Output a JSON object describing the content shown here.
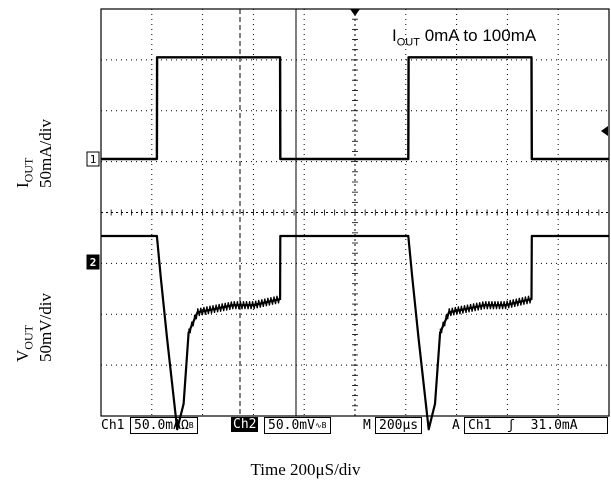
{
  "annotation": {
    "symbol": "I",
    "sub": "OUT",
    "text": " 0mA to 100mA"
  },
  "ylabels": {
    "iout": {
      "symbol": "I",
      "sub": "OUT",
      "scale": "50mA/div"
    },
    "vout": {
      "symbol": "V",
      "sub": "OUT",
      "scale": "50mV/div"
    }
  },
  "xlabel": "Time 200μS/div",
  "status": {
    "ch1": "Ch1",
    "ch1_scale": "50.0mAΩ",
    "ch1_bw": "B",
    "ch2": "Ch2",
    "ch2_scale": "50.0mV",
    "ch2_bw": "B",
    "m": "M",
    "timebase": "200μs",
    "a": "A",
    "trigger_ch": "Ch1",
    "trigger_edge": "ʃ",
    "trigger_level": "31.0mA"
  },
  "markers": {
    "ch1": "1",
    "ch2": "2"
  },
  "colors": {
    "trace": "#000000",
    "grid": "#000000",
    "background": "#ffffff"
  },
  "chart_data": {
    "type": "line",
    "grid": true,
    "x_divisions": 10,
    "y_divisions": 8,
    "x_unit": "μs",
    "series": [
      {
        "channel": "Ch1",
        "x": [
          0,
          220,
          221,
          705,
          706,
          1210,
          1211,
          1695,
          1696,
          2000
        ],
        "y": [
          0,
          0,
          100,
          100,
          0,
          0,
          100,
          100,
          0,
          0
        ]
      },
      {
        "channel": "Ch2",
        "x": [
          0,
          220,
          235,
          260,
          300,
          325,
          345,
          380,
          440,
          520,
          600,
          705,
          706,
          1210,
          1225,
          1250,
          1290,
          1315,
          1335,
          1370,
          1430,
          1510,
          1590,
          1695,
          1696,
          2000
        ],
        "y": [
          0,
          0,
          -40,
          -100,
          -190,
          -165,
          -95,
          -75,
          -72,
          -68,
          -68,
          -62,
          0,
          0,
          -40,
          -100,
          -190,
          -165,
          -95,
          -75,
          -72,
          -68,
          -68,
          -62,
          0,
          0
        ]
      }
    ]
  }
}
